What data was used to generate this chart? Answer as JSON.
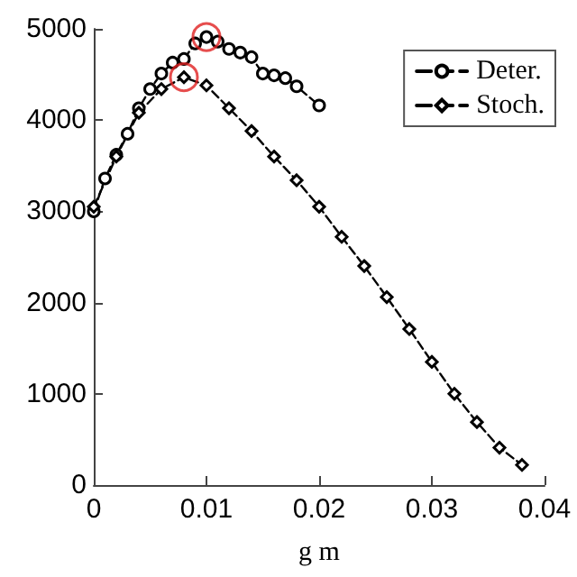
{
  "chart_data": {
    "type": "line",
    "xlabel": "g m",
    "series": [
      {
        "name": "Deter.",
        "color": "#000000",
        "marker": "circle",
        "line_style": "dashed",
        "x": [
          0,
          0.001,
          0.002,
          0.003,
          0.004,
          0.005,
          0.006,
          0.007,
          0.008,
          0.009,
          0.01,
          0.011,
          0.012,
          0.013,
          0.014,
          0.015,
          0.016,
          0.017,
          0.018,
          0.02
        ],
        "values": [
          3000,
          3360,
          3620,
          3850,
          4130,
          4340,
          4510,
          4630,
          4670,
          4840,
          4910,
          4860,
          4780,
          4740,
          4690,
          4510,
          4490,
          4460,
          4370,
          4160
        ]
      },
      {
        "name": "Stoch.",
        "color": "#000000",
        "marker": "diamond",
        "line_style": "dashed",
        "x": [
          0,
          0.002,
          0.004,
          0.006,
          0.008,
          0.01,
          0.012,
          0.014,
          0.016,
          0.018,
          0.02,
          0.022,
          0.024,
          0.026,
          0.028,
          0.03,
          0.032,
          0.034,
          0.036,
          0.038
        ],
        "values": [
          3050,
          3600,
          4080,
          4340,
          4470,
          4380,
          4130,
          3880,
          3600,
          3340,
          3050,
          2720,
          2400,
          2060,
          1710,
          1350,
          1000,
          690,
          410,
          220
        ]
      },
      {
        "type": "scatter",
        "color": "#e02020",
        "marker": "circle",
        "x": [
          0.01,
          0.008
        ],
        "values": [
          4910,
          4470
        ]
      }
    ],
    "xlim": [
      0,
      0.04
    ],
    "xticks": [
      0,
      0.01,
      0.02,
      0.03,
      0.04
    ],
    "ylim": [
      0,
      5000
    ],
    "yticks": [
      0,
      1000,
      2000,
      3000,
      4000,
      5000
    ],
    "legend": "top right"
  }
}
